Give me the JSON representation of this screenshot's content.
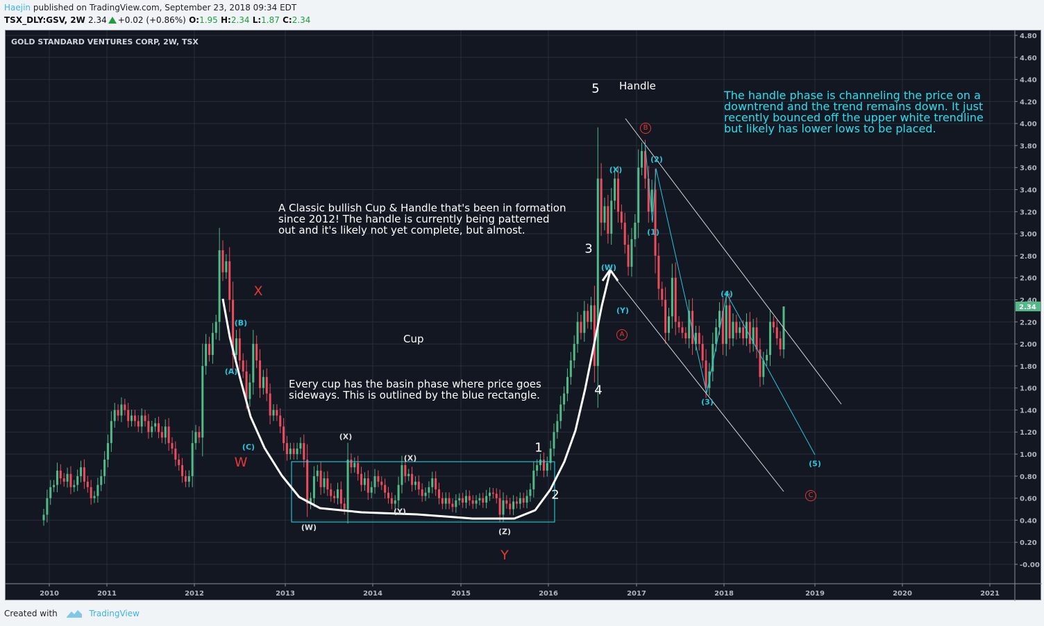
{
  "header": {
    "author": "Haejin",
    "published": "published on TradingView.com, September 23, 2018 09:34 EDT",
    "symbol": "TSX_DLY:GSV, 2W",
    "last": "2.34",
    "change": "+0.02 (+0.86%)",
    "o_label": "O:",
    "o": "1.95",
    "h_label": "H:",
    "h": "2.34",
    "l_label": "L:",
    "l": "1.87",
    "c_label": "C:",
    "c": "2.34"
  },
  "footer": {
    "created_with": "Created with",
    "brand": "TradingView"
  },
  "colors": {
    "background": "#131722",
    "up": "#53b987",
    "down": "#eb4d5c",
    "grid": "#2a2e39",
    "annotation_cyan": "#26e0f0",
    "wave_red": "#e53935",
    "price_label": "#53b987"
  },
  "chart_data": {
    "type": "candlestick",
    "title": "GOLD STANDARD VENTURES CORP, 2W, TSX",
    "interval": "2W",
    "ylim": [
      0,
      4.8
    ],
    "y_ticks": [
      "4.80",
      "4.60",
      "4.40",
      "4.20",
      "4.00",
      "3.80",
      "3.60",
      "3.40",
      "3.20",
      "3.00",
      "2.80",
      "2.60",
      "2.40",
      "2.20",
      "2.00",
      "1.80",
      "1.60",
      "1.40",
      "1.20",
      "1.00",
      "0.80",
      "0.60",
      "0.40",
      "0.20",
      "-0.00"
    ],
    "x_ticks": [
      "2010",
      "2011",
      "2012",
      "2013",
      "2014",
      "2015",
      "2016",
      "2017",
      "2018",
      "2019",
      "2020",
      "2021"
    ],
    "grid": true,
    "last_price_label": "2.34",
    "last_candle": {
      "open": 1.95,
      "high": 2.34,
      "low": 1.87,
      "close": 2.34
    },
    "close": [
      0.45,
      0.6,
      0.7,
      0.72,
      0.85,
      0.78,
      0.75,
      0.82,
      0.7,
      0.72,
      0.8,
      0.88,
      0.75,
      0.7,
      0.6,
      0.62,
      0.72,
      0.8,
      0.95,
      1.1,
      1.3,
      1.4,
      1.35,
      1.45,
      1.4,
      1.3,
      1.35,
      1.3,
      1.25,
      1.35,
      1.3,
      1.2,
      1.25,
      1.28,
      1.2,
      1.15,
      1.25,
      1.1,
      1.05,
      0.95,
      0.9,
      0.8,
      0.75,
      0.8,
      1.1,
      1.2,
      1.15,
      1.8,
      2.0,
      1.9,
      2.1,
      2.2,
      2.85,
      2.65,
      2.75,
      2.4,
      1.9,
      2.05,
      1.85,
      1.75,
      1.5,
      1.65,
      2.0,
      1.85,
      1.6,
      1.7,
      1.55,
      1.35,
      1.4,
      1.35,
      1.25,
      1.1,
      1.0,
      1.05,
      1.0,
      1.05,
      1.1,
      0.95,
      0.55,
      0.6,
      0.8,
      0.85,
      0.7,
      0.78,
      0.68,
      0.62,
      0.6,
      0.68,
      0.55,
      0.5,
      0.95,
      0.88,
      0.92,
      0.82,
      0.72,
      0.78,
      0.65,
      0.7,
      0.8,
      0.75,
      0.72,
      0.65,
      0.6,
      0.55,
      0.58,
      0.72,
      0.9,
      0.8,
      0.82,
      0.72,
      0.75,
      0.68,
      0.62,
      0.65,
      0.7,
      0.78,
      0.68,
      0.6,
      0.55,
      0.6,
      0.55,
      0.52,
      0.58,
      0.6,
      0.56,
      0.62,
      0.58,
      0.55,
      0.58,
      0.6,
      0.56,
      0.62,
      0.65,
      0.64,
      0.6,
      0.45,
      0.58,
      0.55,
      0.5,
      0.57,
      0.55,
      0.6,
      0.56,
      0.62,
      0.68,
      0.85,
      0.9,
      0.95,
      0.85,
      0.92,
      1.05,
      1.2,
      1.3,
      1.45,
      1.55,
      1.7,
      1.85,
      2.0,
      2.2,
      2.1,
      2.3,
      2.2,
      2.35,
      1.8,
      3.5,
      3.1,
      3.25,
      3.0,
      3.3,
      3.5,
      3.2,
      3.1,
      2.9,
      2.7,
      2.95,
      3.1,
      3.6,
      3.75,
      3.5,
      3.2,
      3.4,
      2.8,
      2.5,
      2.4,
      2.1,
      2.25,
      2.6,
      2.2,
      2.15,
      2.1,
      2.05,
      2.3,
      2.0,
      2.1,
      2.0,
      1.85,
      1.6,
      1.75,
      2.0,
      2.15,
      2.3,
      2.0,
      2.35,
      2.05,
      2.2,
      2.1,
      2.15,
      2.05,
      2.2,
      2.0,
      2.15,
      1.95,
      1.7,
      1.85,
      1.9,
      2.2,
      2.15,
      2.05,
      1.95,
      2.34
    ],
    "annotations": {
      "note_cup_handle": "A Classic bullish Cup & Handle that's been in formation\nsince 2012! The handle is currently being patterned\nout and it's likely not yet complete, but almost.",
      "note_basin": "Every cup has the basin phase where price goes\nsideways. This is outlined by the blue rectangle.",
      "note_handle": "The handle phase is channeling the price on a\ndowntrend and the trend remains down. It just\nrecently bounced off the upper white trendline\nbut likely has lower lows to be placed.",
      "cup": "Cup",
      "handle": "Handle",
      "wave_labels": [
        "(A)",
        "(B)",
        "(C)",
        "W",
        "X",
        "Y",
        "(W)",
        "(X)",
        "(X)",
        "(Y)",
        "(Z)",
        "1",
        "2",
        "3",
        "4",
        "5",
        "(W)",
        "(X)",
        "(Y)",
        "A",
        "B",
        "C",
        "(1)",
        "(2)",
        "(3)",
        "(4)",
        "(5)"
      ]
    }
  }
}
